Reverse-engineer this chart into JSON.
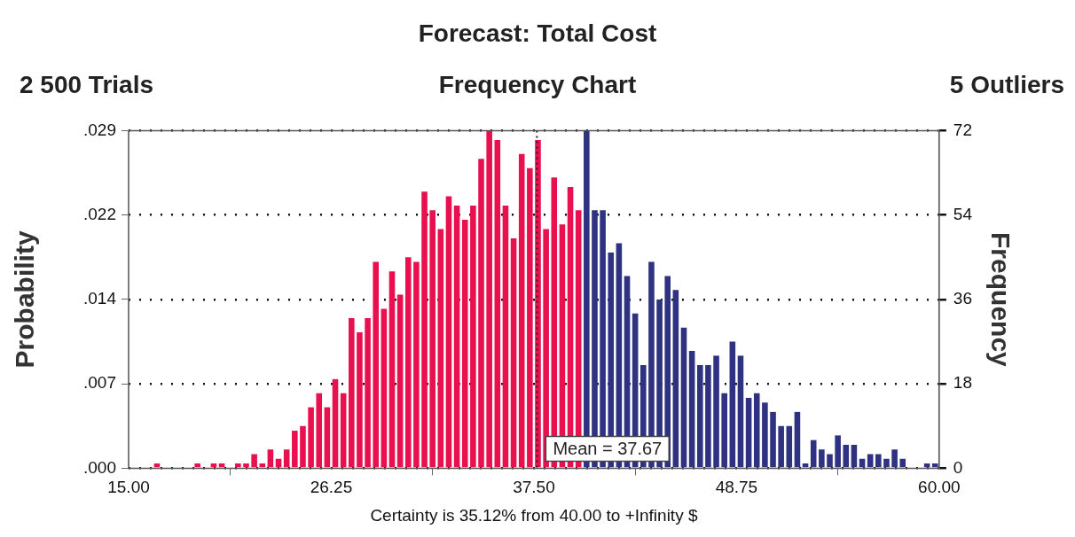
{
  "chart_data": {
    "type": "histogram",
    "title": "Forecast: Total Cost",
    "subtitle": "Frequency Chart",
    "annotations": [
      "2 500 Trials",
      "5 Outliers"
    ],
    "xlabel": "Certainty is 35.12% from 40.00 to +Infinity $",
    "ylabel": "Probability",
    "y2label": "Frequency",
    "bins": [
      15,
      15.45,
      15.9,
      16.35,
      16.8,
      17.25,
      17.7,
      18.15,
      18.6,
      19.05,
      19.5,
      19.95,
      20.4,
      20.85,
      21.3,
      21.75,
      22.2,
      22.65,
      23.1,
      23.55,
      24,
      24.45,
      24.9,
      25.35,
      25.8,
      26.25,
      26.7,
      27.15,
      27.6,
      28.05,
      28.5,
      28.95,
      29.4,
      29.85,
      30.3,
      30.75,
      31.2,
      31.65,
      32.1,
      32.55,
      33,
      33.45,
      33.9,
      34.35,
      34.8,
      35.25,
      35.7,
      36.15,
      36.6,
      37.05,
      37.5,
      37.95,
      38.4,
      38.85,
      39.3,
      39.75,
      40.2,
      40.65,
      41.1,
      41.55,
      42,
      42.45,
      42.9,
      43.35,
      43.8,
      44.25,
      44.7,
      45.15,
      45.6,
      46.05,
      46.5,
      46.95,
      47.4,
      47.85,
      48.3,
      48.75,
      49.2,
      49.65,
      50.1,
      50.55,
      51,
      51.45,
      51.9,
      52.35,
      52.8,
      53.25,
      53.7,
      54.15,
      54.6,
      55.05,
      55.5,
      55.95,
      56.4,
      56.85,
      57.3,
      57.75,
      58.2,
      58.65,
      59.1,
      59.55,
      60
    ],
    "series": [
      {
        "axis": "y2",
        "values": [
          0,
          0,
          0,
          1,
          0,
          0,
          0,
          0,
          1,
          0,
          1,
          1,
          0,
          1,
          1,
          3,
          1,
          4,
          2,
          4,
          8,
          9,
          13,
          16,
          13,
          19,
          16,
          32,
          29,
          32,
          44,
          34,
          42,
          37,
          45,
          44,
          59,
          55,
          51,
          58,
          56,
          53,
          56,
          66,
          72,
          70,
          56,
          49,
          67,
          64,
          70,
          51,
          62,
          52,
          60,
          55,
          72,
          55,
          55,
          46,
          48,
          41,
          33,
          22,
          44,
          36,
          41,
          38,
          30,
          25,
          22,
          22,
          24,
          16,
          27,
          24,
          15,
          16,
          14,
          12,
          9,
          9,
          12,
          1,
          6,
          4,
          3,
          7,
          5,
          5,
          2,
          3,
          3,
          2,
          4,
          2,
          0,
          0,
          1,
          1
        ],
        "colors": [
          "#e8104f",
          "#e8104f",
          "#e8104f",
          "#e8104f",
          "#e8104f",
          "#e8104f",
          "#e8104f",
          "#e8104f",
          "#e8104f",
          "#e8104f",
          "#e8104f",
          "#e8104f",
          "#e8104f",
          "#e8104f",
          "#e8104f",
          "#e8104f",
          "#e8104f",
          "#e8104f",
          "#e8104f",
          "#e8104f",
          "#e8104f",
          "#e8104f",
          "#e8104f",
          "#e8104f",
          "#e8104f",
          "#e8104f",
          "#e8104f",
          "#e8104f",
          "#e8104f",
          "#e8104f",
          "#e8104f",
          "#e8104f",
          "#e8104f",
          "#e8104f",
          "#e8104f",
          "#e8104f",
          "#e8104f",
          "#e8104f",
          "#e8104f",
          "#e8104f",
          "#e8104f",
          "#e8104f",
          "#e8104f",
          "#e8104f",
          "#e8104f",
          "#e8104f",
          "#e8104f",
          "#e8104f",
          "#e8104f",
          "#e8104f",
          "#e8104f",
          "#e8104f",
          "#e8104f",
          "#e8104f",
          "#e8104f",
          "#e8104f",
          "#2e3280",
          "#2e3280",
          "#2e3280",
          "#2e3280",
          "#2e3280",
          "#2e3280",
          "#2e3280",
          "#2e3280",
          "#2e3280",
          "#2e3280",
          "#2e3280",
          "#2e3280",
          "#2e3280",
          "#2e3280",
          "#2e3280",
          "#2e3280",
          "#2e3280",
          "#2e3280",
          "#2e3280",
          "#2e3280",
          "#2e3280",
          "#2e3280",
          "#2e3280",
          "#2e3280",
          "#2e3280",
          "#2e3280",
          "#2e3280",
          "#2e3280",
          "#2e3280",
          "#2e3280",
          "#2e3280",
          "#2e3280",
          "#2e3280",
          "#2e3280",
          "#2e3280",
          "#2e3280",
          "#2e3280",
          "#2e3280",
          "#2e3280",
          "#2e3280",
          "#2e3280",
          "#2e3280",
          "#2e3280",
          "#2e3280"
        ]
      }
    ],
    "xlim": [
      15,
      60
    ],
    "xticks": [
      {
        "value": 15,
        "label": "15.00"
      },
      {
        "value": 26.25,
        "label": "26.25"
      },
      {
        "value": 37.5,
        "label": "37.50"
      },
      {
        "value": 48.75,
        "label": "48.75"
      },
      {
        "value": 60,
        "label": "60.00"
      }
    ],
    "ylim": [
      0,
      0.0288
    ],
    "yticks": [
      {
        "value": 0,
        "label": ".000"
      },
      {
        "value": 0.0072,
        "label": ".007"
      },
      {
        "value": 0.0144,
        "label": ".014"
      },
      {
        "value": 0.0216,
        "label": ".022"
      },
      {
        "value": 0.0288,
        "label": ".029"
      }
    ],
    "y2lim": [
      0,
      72
    ],
    "y2ticks": [
      0,
      18,
      36,
      54,
      72
    ],
    "grid": "y",
    "ref_lines": [
      {
        "axis": "x",
        "value": 37.67,
        "label": "Mean = 37.67",
        "line_style": "dotted"
      }
    ]
  }
}
